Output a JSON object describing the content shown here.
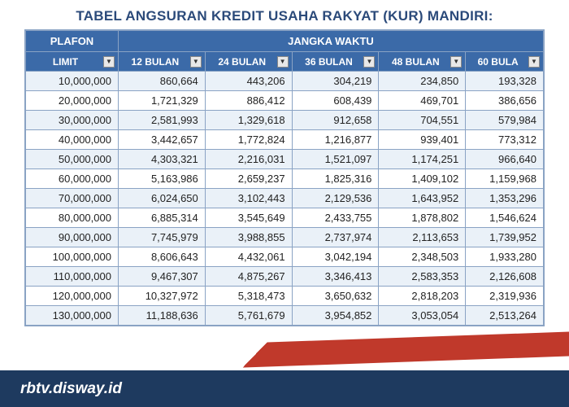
{
  "title": "TABEL ANGSURAN KREDIT USAHA RAKYAT (KUR) MANDIRI:",
  "headers": {
    "plafon": "PLAFON",
    "jangka": "JANGKA WAKTU",
    "limit": "LIMIT",
    "periods": [
      "12 BULAN",
      "24 BULAN",
      "36 BULAN",
      "48 BULAN",
      "60 BULA"
    ]
  },
  "colors": {
    "header_bg": "#3b6aa8",
    "header_text": "#ffffff",
    "border": "#8aa3c4",
    "row_alt": "#eaf1f8",
    "row_base": "#ffffff",
    "navy": "#1e3a5f",
    "red": "#c0392b"
  },
  "rows": [
    [
      "10,000,000",
      "860,664",
      "443,206",
      "304,219",
      "234,850",
      "193,328"
    ],
    [
      "20,000,000",
      "1,721,329",
      "886,412",
      "608,439",
      "469,701",
      "386,656"
    ],
    [
      "30,000,000",
      "2,581,993",
      "1,329,618",
      "912,658",
      "704,551",
      "579,984"
    ],
    [
      "40,000,000",
      "3,442,657",
      "1,772,824",
      "1,216,877",
      "939,401",
      "773,312"
    ],
    [
      "50,000,000",
      "4,303,321",
      "2,216,031",
      "1,521,097",
      "1,174,251",
      "966,640"
    ],
    [
      "60,000,000",
      "5,163,986",
      "2,659,237",
      "1,825,316",
      "1,409,102",
      "1,159,968"
    ],
    [
      "70,000,000",
      "6,024,650",
      "3,102,443",
      "2,129,536",
      "1,643,952",
      "1,353,296"
    ],
    [
      "80,000,000",
      "6,885,314",
      "3,545,649",
      "2,433,755",
      "1,878,802",
      "1,546,624"
    ],
    [
      "90,000,000",
      "7,745,979",
      "3,988,855",
      "2,737,974",
      "2,113,653",
      "1,739,952"
    ],
    [
      "100,000,000",
      "8,606,643",
      "4,432,061",
      "3,042,194",
      "2,348,503",
      "1,933,280"
    ],
    [
      "110,000,000",
      "9,467,307",
      "4,875,267",
      "3,346,413",
      "2,583,353",
      "2,126,608"
    ],
    [
      "120,000,000",
      "10,327,972",
      "5,318,473",
      "3,650,632",
      "2,818,203",
      "2,319,936"
    ],
    [
      "130,000,000",
      "11,188,636",
      "5,761,679",
      "3,954,852",
      "3,053,054",
      "2,513,264"
    ]
  ],
  "footer": {
    "url": "rbtv.disway.id"
  }
}
